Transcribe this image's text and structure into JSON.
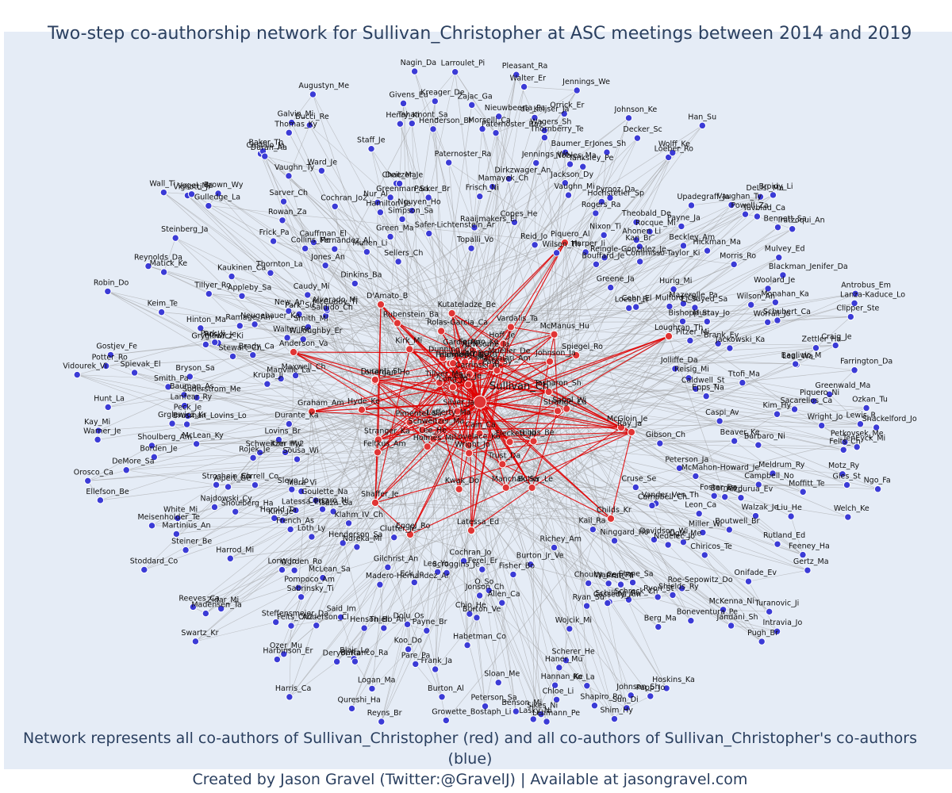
{
  "title": "Two-step co-authorship network for Sullivan_Christopher at ASC meetings between 2014 and 2019",
  "footer": {
    "line1": "Network represents all co-authors of Sullivan_Christopher (red) and all co-authors of Sullivan_Christopher's co-authors (blue)",
    "line2": "Created by Jason Gravel (Twitter:@GravelJ) | Available at jasongravel.com"
  },
  "colors": {
    "background": "#e5ecf6",
    "edge_gray": "#9a9a9a",
    "edge_red": "#e00000",
    "node_blue": "#3b3bd6",
    "node_red": "#e03535",
    "text": "#2a3f5f"
  },
  "center": {
    "name": "Sullivan_Ch"
  },
  "red_nodes": [
    "Piquero_Al",
    "Loughran_Th",
    "Anderson_Va",
    "Graham_Am",
    "D'Amato_B",
    "McGloin_Je",
    "Ray_Ja",
    "Childs_Kr",
    "Engel_Ro",
    "Latessa_Ed",
    "Shaffer_Je",
    "Feldmeyer_Be",
    "Rubenstein_Ba",
    "Rolas-Garcia_Ca",
    "Butler_Le",
    "Kutateladze_Be",
    "Newsome_Ja",
    "Mandalari_Am",
    "Tillyer_Ma",
    "Manchak_Sa",
    "McManus_Hu",
    "Gibbs_Be",
    "Ferraro_Ke",
    "Wright_Jo",
    "Spiegel_Ro",
    "Schweitzer_Ma",
    "Pate_Sy",
    "Fleckett_Ju",
    "Holmes_Mi",
    "Tasharon_Sh",
    "Ichi_Om",
    "Stranger_Ka",
    "Mueller_De",
    "Lonergan_Ho",
    "Carrinski_Al",
    "Long_Jo",
    "Garcia_Ro",
    "Cullen_Fr",
    "Lee_He",
    "Feltkus_Am",
    "Silver_Ja",
    "Cain_Ca",
    "Cain_Je",
    "Lovelace_Ko",
    "Lafferty_Ma",
    "Hoff_Je",
    "Duranti_St",
    "Kirk_Mi",
    "Strange_Ca",
    "Pimentel_Su",
    "Harmon_Ca",
    "Hyde_Ke",
    "Trust_Da",
    "Johnson_Ja",
    "Sabol_Wi",
    "Dunning_Co",
    "Vardalis_Ta",
    "Kwak_Do"
  ],
  "blue_nodes": [
    "Kim_Hy",
    "Sacarellos_Ca",
    "Lewis_R",
    "Wright_Jo",
    "Shackelford_Jo",
    "Caspi_Av",
    "Petkovsek_Me",
    "TenEyck_Mi",
    "Felts_Ch",
    "Barbaro_Ni",
    "Beaver_Ke",
    "Motz_Ry",
    "Ngo_Fa",
    "Gies_St",
    "Gibson_Ch",
    "Meldrum_Ry",
    "Moffitt_Te",
    "Campbell_No",
    "Welch_Ke",
    "Peterson_Ja",
    "McMahon-Howard_Je",
    "Aizpurua_Ev",
    "Liu_He",
    "Barnes_J",
    "Foster_Da",
    "Walzak_Je",
    "Rutland_Ed",
    "Feeney_Ha",
    "Leon_Ca",
    "Boutwell_Br",
    "Gertz_Ma",
    "Cruse_Se",
    "Miller_Wi",
    "Vander_Ven_Th",
    "Campbell_Ch",
    "Onifade_Ev",
    "Ogle_Me",
    "Chiricos_Te",
    "Nedelec_Jo",
    "Turanovic_Ji",
    "Intravia_Jo",
    "Davidson_Wi",
    "Pugh_Br",
    "McKenna_Ni",
    "Jandani_Sh",
    "Roe-Sepowitz_Do",
    "Shields_Ry",
    "Boneventura_Pe",
    "Ninggard_Ho",
    "Kail_Ra",
    "Ryon_St",
    "Stone_Sa",
    "Berg_Ma",
    "Pratt_Tr",
    "Schreck_Ch",
    "Warren_Pa",
    "Hoskins_Ka",
    "Schilling_Ra",
    "Chouhy_Ce",
    "Cassedy_Am",
    "Papp_Jo",
    "Richey_Am",
    "Ryan_Su",
    "Johnson_Sh",
    "Sun_Di",
    "Shim_Hy",
    "Wojcik_Mi",
    "Shapiro_Ro",
    "Ro_La",
    "Scherer_He",
    "Burton_Jr_Ve",
    "Hannan_Ke",
    "Haner_Mu",
    "Chloe_Li",
    "Lehmann_Pe",
    "Sikes_Ni",
    "Fisher_Bo",
    "Lasky_Ni",
    "Allen_Ca",
    "Benson_Mi",
    "Sloan_Me",
    "O_So",
    "Peterson_Sa",
    "Jonson_Ch",
    "Ferel_Er",
    "Burton_Ve",
    "Habetman_Co",
    "Chio_He",
    "Growette_Bostaph_Li",
    "Cochran_Jo",
    "Burton_Al",
    "Frank_Ja",
    "Scroggins_Je",
    "Payne_Br",
    "Pare_Pa",
    "Lee_Yo",
    "Koo_Do",
    "Dolu_Os",
    "Reyns_Br",
    "Logan_Ma",
    "Eck_Jo",
    "Qureshi_Ha",
    "Thielo_An",
    "Blair_Le",
    "Barranco_Ra",
    "Henson_Bi",
    "Deryol_Ra",
    "Madero-Hernandez_Ar",
    "Gilchrist_An",
    "Said_Im",
    "Clutter_Je",
    "Harris_Ca",
    "Anderson_Cl",
    "Ozer_Mu",
    "Harbinson_Er",
    "Felts_Ch2",
    "Ndreka_Mi",
    "McLean_Sa",
    "Sabrinsky_Ti",
    "Pompoco_Am",
    "Steffensmeier_Da",
    "Henderson_Sa",
    "Worden_Ro",
    "Klahm_IV_Ch",
    "Long_Jo",
    "Swartz_Kr",
    "Zidar_Mi",
    "Loth_Ly",
    "Isaza_Ga",
    "Madensen_Ta",
    "Reeves_Ca",
    "French_As",
    "Corsaro_Ni",
    "Harrod_Mi",
    "Goulette_Na",
    "Kim_Je",
    "Latessa_Ed2",
    "Herold_Ta",
    "Mora_Vi",
    "Stoddard_Co",
    "Steiner_Be",
    "Shoulberg_Ha",
    "Sleyo_Jo",
    "Martinius_An",
    "White_Mi",
    "Najdowski_Cy",
    "Meisenholder_Te",
    "Sorrell_Co",
    "Alpert_Ge",
    "Stroshein_Ch",
    "Sousa_Wi",
    "Kim_Hy2",
    "Ellefson_Be",
    "Schweitzer_My",
    "Rojek_Je",
    "DeMore_Sa",
    "Orosco_Ca",
    "Lovins_Br",
    "Borden_Je",
    "McLean_Ky",
    "Shoulberg_Am",
    "Durante_Ka",
    "Warner_Je",
    "Kay_Mi",
    "Brusman_Lovins_Lo",
    "Grglewicz_Kr",
    "Peck_Je",
    "Lanfear_Ry",
    "Hunt_La",
    "Bauman_As",
    "Soderstrom_Me",
    "Smith_Pa",
    "Vidourek_Vi",
    "Krupa_Ji",
    "Spievak_El",
    "Bryson_Sa",
    "Potter_Ro",
    "Manville_La",
    "Gostjev_Fe",
    "Maxwell_Ch",
    "Stewart_Ch",
    "Brady_Ca",
    "Rosky_Je",
    "Gryglewicz_Ki",
    "Park_Ji",
    "Hinton_Ma",
    "Keim_Te",
    "Robin_Do",
    "Ramage_Am",
    "Walter_Re",
    "Neugebauer_Ka",
    "Willoughby_Er",
    "Tillyer_Ro",
    "Reynolds_Da",
    "Matick_Ke",
    "Smith_Mi",
    "New_An",
    "Appleby_Sa",
    "Park_Su",
    "Kaukinen_Ca",
    "Steinberg_Ja",
    "Saldido_Ch",
    "McCuddy_Ti",
    "Alvarado_Mi",
    "Thornton_La",
    "Caudy_Mi",
    "Wall_Ti",
    "Vigliotti_Ji",
    "Vogel_Ma",
    "Gulledge_La",
    "Frick_Pa",
    "Brown_Wy",
    "Collins_Me",
    "Jones_An",
    "Rowan_Za",
    "Dinkins_Ba",
    "Cauffman_El",
    "Fernandez_Al",
    "Sarver_Ch",
    "Castillo_Ja",
    "Baker_Th",
    "Duran_Aa",
    "Vaughn_Ty",
    "Mullen_Li",
    "Cochran_Jo2",
    "Ward_Je",
    "Thomas_Ky",
    "Galvin_Mi",
    "Bucci_Re",
    "Sellers_Ch",
    "Augustyn_Me",
    "Hamilton_Je",
    "Green_Ma",
    "Nur_Al",
    "Greenman_Sa",
    "Simpson_Sa",
    "Staff_Je",
    "Chae_Ma",
    "Deitzer_Je",
    "Nguyen_Ho",
    "Henry_Ki",
    "Safer-Lichtenstein_Ar",
    "Givens_Eu",
    "Tahamont_Sa",
    "Parker_Br",
    "Nagin_Da",
    "Kreager_De",
    "Henderson_Br",
    "Paternoster_Ra",
    "Larroulet_Pi",
    "Topalli_Vo",
    "Raaijmakers_El",
    "Zajac_Ga",
    "Morselli_Ca",
    "Frisch_Ni",
    "Paternoster_Ra2",
    "Nieuwbeerta_Pa",
    "Mamayek_Ch",
    "Pleasant_Ra",
    "Dirkzwager_An",
    "Walter_Er",
    "de_Keijser_Ja",
    "Copes_He",
    "Thornberry_Te",
    "Jennings_Wo",
    "Wagers_Sh",
    "Jennings_We",
    "Orrick_Er",
    "Reid_Jo",
    "Baumer_Er",
    "Jackson_Dy",
    "Nobles_Ma",
    "Vaughn_Mi",
    "Tanksley_Pe",
    "Wilson_Th",
    "Johnson_Ke",
    "Jones_Sh",
    "Decker_Sc",
    "Rogers_Ra",
    "Hochstetler_Sp",
    "Pyrooz_Da",
    "Harper_Ii",
    "Nixon_Ti",
    "Loeber_Ro",
    "Wolff_Ke",
    "Han_Su",
    "Theobald_De",
    "Bouffard_Je",
    "Reingle-Gonzalez_Je",
    "Ahonen_Li",
    "Rocque_Mi",
    "Kan_Br",
    "Upadegraff_Ja",
    "Commisso-Taylor_Ki",
    "Payne_Ja",
    "Greene_Ja",
    "Vaughan_Ty",
    "Beckley_Am",
    "DeLisi_Ma",
    "Powell_Za",
    "Broidy_Li",
    "Tuvblad_Ca",
    "Loesel_Fr",
    "Hickman_Ma",
    "Cohn_El",
    "Hurig_Mi",
    "Bennett_Sa",
    "Iratzoqui_An",
    "Morris_Ro",
    "Mulford_Ca",
    "Mulvey_Ed",
    "Mazerolle_Pa",
    "El_Sayed_Sa",
    "Blackman_Jenifer_Da",
    "Bishopp_St",
    "Woolard_Je",
    "Wilson_An",
    "Murray_Jo",
    "Monahan_Ka",
    "Pitzer_Mi",
    "Antrobus_Em",
    "Schubert_Ca",
    "Worrall_Jo",
    "Lanza-Kaduce_Lo",
    "Brank_Ev",
    "Clipper_Ste",
    "Jackowski_Ka",
    "Jolliffe_Da",
    "Craig_Je",
    "Zettler_Ha",
    "Reisig_Mi",
    "Leal_Wa",
    "Baglivio_M",
    "Farrington_Da",
    "Caldwell_St",
    "Ttofi_Ma",
    "Epps_Na",
    "Greenwald_Ma",
    "Piquero_Ni",
    "Ozkan_Tu"
  ],
  "edge_count": 1400,
  "red_edge_count": 180
}
